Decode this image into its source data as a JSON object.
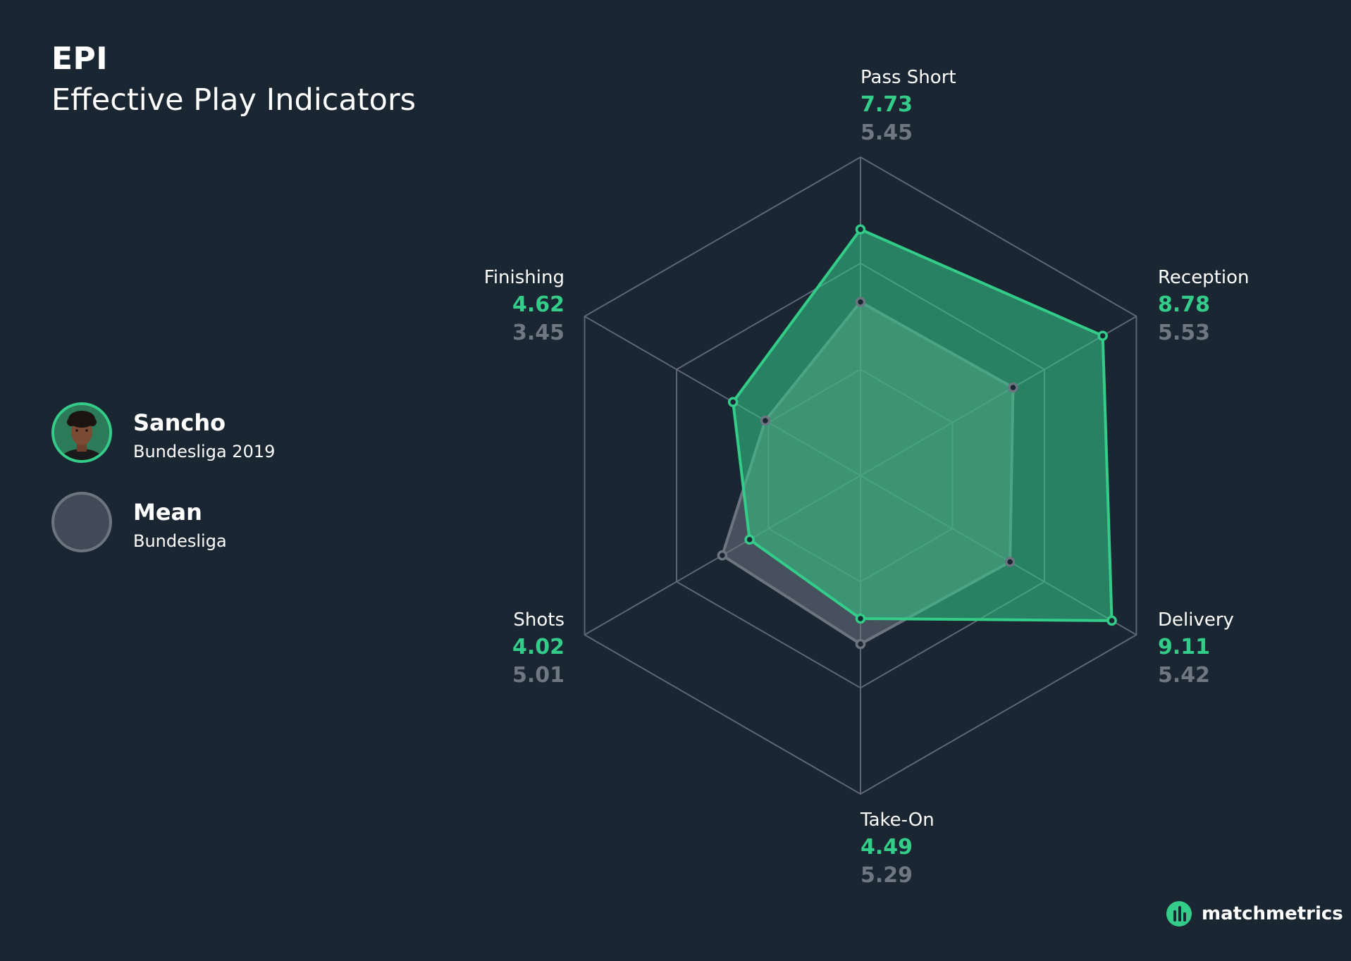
{
  "header": {
    "title": "EPI",
    "subtitle": "Effective Play Indicators"
  },
  "legend": {
    "player": {
      "name": "Sancho",
      "sub": "Bundesliga 2019",
      "color": "#33cc88"
    },
    "mean": {
      "name": "Mean",
      "sub": "Bundesliga",
      "color": "#6c7480"
    }
  },
  "brand": {
    "name": "matchmetrics",
    "logo_icon": "matchmetrics-logo-icon"
  },
  "chart_data": {
    "type": "radar",
    "title": "",
    "axes": [
      "Pass Short",
      "Reception",
      "Delivery",
      "Take-On",
      "Shots",
      "Finishing"
    ],
    "range": [
      0,
      10
    ],
    "series": [
      {
        "name": "Sancho",
        "color": "#33cc88",
        "values": [
          7.73,
          8.78,
          9.11,
          4.49,
          4.02,
          4.62
        ],
        "labels": [
          "7.73",
          "8.78",
          "9.11",
          "4.49",
          "4.02",
          "4.62"
        ]
      },
      {
        "name": "Mean",
        "color": "#6c7480",
        "values": [
          5.45,
          5.53,
          5.42,
          5.29,
          5.01,
          3.45
        ],
        "labels": [
          "5.45",
          "5.53",
          "5.42",
          "5.29",
          "5.01",
          "3.45"
        ]
      }
    ]
  }
}
